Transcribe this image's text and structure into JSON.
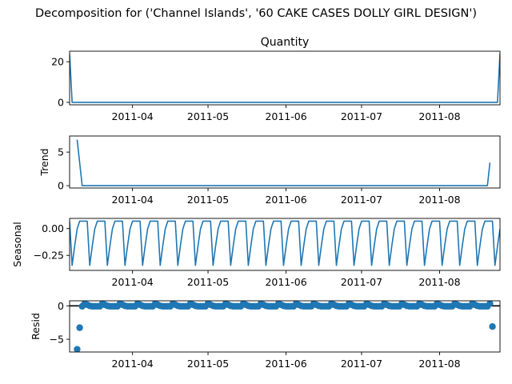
{
  "figure": {
    "suptitle": "Decomposition for ('Channel Islands', '60 CAKE CASES DOLLY GIRL DESIGN')"
  },
  "chart_data": [
    {
      "type": "line",
      "key": "observed",
      "title": "Quantity",
      "xlabel": "",
      "ylabel": "",
      "xlim": [
        "2011-03-07",
        "2011-08-25"
      ],
      "ylim": [
        -1.2,
        25.2
      ],
      "yticks": [
        0,
        20
      ],
      "ytick_labels": [
        "0",
        "20"
      ],
      "xticks": [
        "2011-04-01",
        "2011-05-01",
        "2011-06-01",
        "2011-07-01",
        "2011-08-01"
      ],
      "xtick_labels": [
        "2011-04",
        "2011-05",
        "2011-06",
        "2011-07",
        "2011-08"
      ],
      "x_start": "2011-03-07",
      "values": [
        24,
        0,
        0,
        0,
        0,
        0,
        0,
        0,
        0,
        0,
        0,
        0,
        0,
        0,
        0,
        0,
        0,
        0,
        0,
        0,
        0,
        0,
        0,
        0,
        0,
        0,
        0,
        0,
        0,
        0,
        0,
        0,
        0,
        0,
        0,
        0,
        0,
        0,
        0,
        0,
        0,
        0,
        0,
        0,
        0,
        0,
        0,
        0,
        0,
        0,
        0,
        0,
        0,
        0,
        0,
        0,
        0,
        0,
        0,
        0,
        0,
        0,
        0,
        0,
        0,
        0,
        0,
        0,
        0,
        0,
        0,
        0,
        0,
        0,
        0,
        0,
        0,
        0,
        0,
        0,
        0,
        0,
        0,
        0,
        0,
        0,
        0,
        0,
        0,
        0,
        0,
        0,
        0,
        0,
        0,
        0,
        0,
        0,
        0,
        0,
        0,
        0,
        0,
        0,
        0,
        0,
        0,
        0,
        0,
        0,
        0,
        0,
        0,
        0,
        0,
        0,
        0,
        0,
        0,
        0,
        0,
        0,
        0,
        0,
        0,
        0,
        0,
        0,
        0,
        0,
        0,
        0,
        0,
        0,
        0,
        0,
        0,
        0,
        0,
        0,
        0,
        0,
        0,
        0,
        0,
        0,
        0,
        0,
        0,
        0,
        0,
        0,
        0,
        0,
        0,
        0,
        0,
        0,
        0,
        0,
        0,
        0,
        0,
        0,
        0,
        0,
        0,
        0,
        0,
        0,
        0,
        24
      ]
    },
    {
      "type": "line",
      "key": "trend",
      "title": "",
      "xlabel": "",
      "ylabel": "Trend",
      "xlim": [
        "2011-03-07",
        "2011-08-25"
      ],
      "ylim": [
        -0.35,
        7.4
      ],
      "yticks": [
        0,
        5
      ],
      "ytick_labels": [
        "0",
        "5"
      ],
      "xticks": [
        "2011-04-01",
        "2011-05-01",
        "2011-06-01",
        "2011-07-01",
        "2011-08-01"
      ],
      "xtick_labels": [
        "2011-04",
        "2011-05",
        "2011-06",
        "2011-07",
        "2011-08"
      ],
      "x_start": "2011-03-10",
      "values": [
        6.86,
        3.43,
        0,
        0,
        0,
        0,
        0,
        0,
        0,
        0,
        0,
        0,
        0,
        0,
        0,
        0,
        0,
        0,
        0,
        0,
        0,
        0,
        0,
        0,
        0,
        0,
        0,
        0,
        0,
        0,
        0,
        0,
        0,
        0,
        0,
        0,
        0,
        0,
        0,
        0,
        0,
        0,
        0,
        0,
        0,
        0,
        0,
        0,
        0,
        0,
        0,
        0,
        0,
        0,
        0,
        0,
        0,
        0,
        0,
        0,
        0,
        0,
        0,
        0,
        0,
        0,
        0,
        0,
        0,
        0,
        0,
        0,
        0,
        0,
        0,
        0,
        0,
        0,
        0,
        0,
        0,
        0,
        0,
        0,
        0,
        0,
        0,
        0,
        0,
        0,
        0,
        0,
        0,
        0,
        0,
        0,
        0,
        0,
        0,
        0,
        0,
        0,
        0,
        0,
        0,
        0,
        0,
        0,
        0,
        0,
        0,
        0,
        0,
        0,
        0,
        0,
        0,
        0,
        0,
        0,
        0,
        0,
        0,
        0,
        0,
        0,
        0,
        0,
        0,
        0,
        0,
        0,
        0,
        0,
        0,
        0,
        0,
        0,
        0,
        0,
        0,
        0,
        0,
        0,
        0,
        0,
        0,
        0,
        0,
        0,
        0,
        0,
        0,
        0,
        0,
        0,
        0,
        0,
        0,
        0,
        0,
        0,
        0,
        0,
        3.43
      ]
    },
    {
      "type": "line",
      "key": "seasonal",
      "title": "",
      "xlabel": "",
      "ylabel": "Seasonal",
      "xlim": [
        "2011-03-07",
        "2011-08-25"
      ],
      "ylim": [
        -0.39,
        0.095
      ],
      "yticks": [
        0.0,
        -0.25
      ],
      "ytick_labels": [
        "0.00",
        "−0.25"
      ],
      "xticks": [
        "2011-04-01",
        "2011-05-01",
        "2011-06-01",
        "2011-07-01",
        "2011-08-01"
      ],
      "xtick_labels": [
        "2011-04",
        "2011-05",
        "2011-06",
        "2011-07",
        "2011-08"
      ],
      "x_start": "2011-03-07",
      "period_pattern": [
        0.069,
        -0.343,
        -0.164,
        -0.003,
        0.069,
        0.069,
        0.069
      ],
      "n_points": 172
    },
    {
      "type": "scatter",
      "key": "resid",
      "title": "",
      "xlabel": "",
      "ylabel": "Resid",
      "xlim": [
        "2011-03-07",
        "2011-08-25"
      ],
      "ylim": [
        -6.9,
        0.75
      ],
      "yticks": [
        0,
        -5
      ],
      "ytick_labels": [
        "0",
        "−5"
      ],
      "xticks": [
        "2011-04-01",
        "2011-05-01",
        "2011-06-01",
        "2011-07-01",
        "2011-08-01"
      ],
      "xtick_labels": [
        "2011-04",
        "2011-05",
        "2011-06",
        "2011-07",
        "2011-08"
      ],
      "zero_line": 0,
      "special_points": [
        {
          "x": "2011-03-10",
          "y": -6.5
        },
        {
          "x": "2011-03-11",
          "y": -3.27
        },
        {
          "x": "2011-08-22",
          "y": -3.1
        }
      ],
      "base_range": [
        "2011-03-12",
        "2011-08-21"
      ],
      "base_pattern": [
        -0.07,
        0.34,
        0.16,
        0.0,
        -0.07,
        -0.07,
        -0.07
      ]
    }
  ]
}
